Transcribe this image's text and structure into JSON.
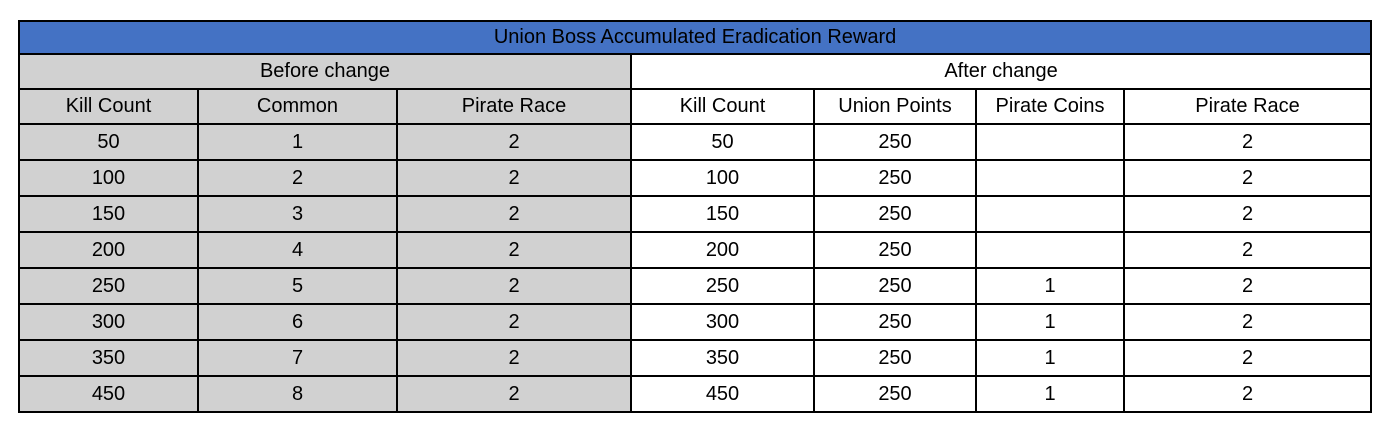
{
  "chart_data": {
    "type": "table",
    "title": "Union Boss Accumulated Eradication Reward",
    "section_headers": [
      {
        "label": "Before change",
        "colspan": 3
      },
      {
        "label": "After change",
        "colspan": 4
      }
    ],
    "columns": [
      "Kill Count",
      "Common",
      "Pirate Race",
      "Kill Count",
      "Union Points",
      "Pirate Coins",
      "Pirate Race"
    ],
    "before_column_count": 3,
    "rows": [
      [
        "50",
        "1",
        "2",
        "50",
        "250",
        "",
        "2"
      ],
      [
        "100",
        "2",
        "2",
        "100",
        "250",
        "",
        "2"
      ],
      [
        "150",
        "3",
        "2",
        "150",
        "250",
        "",
        "2"
      ],
      [
        "200",
        "4",
        "2",
        "200",
        "250",
        "",
        "2"
      ],
      [
        "250",
        "5",
        "2",
        "250",
        "250",
        "1",
        "2"
      ],
      [
        "300",
        "6",
        "2",
        "300",
        "250",
        "1",
        "2"
      ],
      [
        "350",
        "7",
        "2",
        "350",
        "250",
        "1",
        "2"
      ],
      [
        "450",
        "8",
        "2",
        "450",
        "250",
        "1",
        "2"
      ]
    ]
  },
  "colors": {
    "title_bg": "#4472C4",
    "title_text": "#FFFFFF",
    "before_bg": "#D1D1D1",
    "after_bg": "#FFFFFF",
    "border": "#000000",
    "text": "#000000"
  }
}
